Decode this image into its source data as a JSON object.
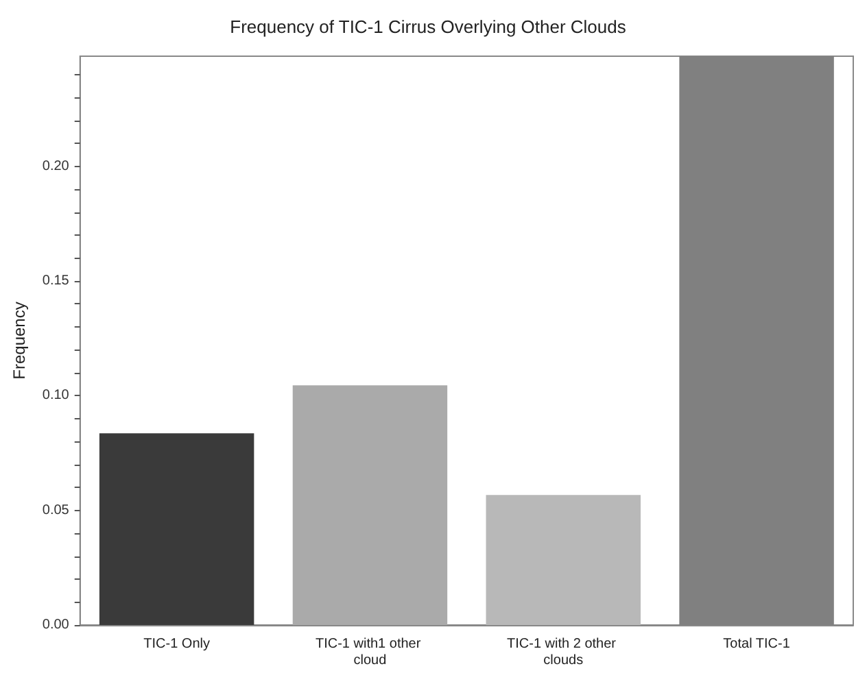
{
  "chart_data": {
    "type": "bar",
    "title": "Frequency of TIC-1 Cirrus Overlying Other Clouds",
    "ylabel": "Frequency",
    "categories": [
      "TIC-1 Only",
      "TIC-1 with1 other cloud",
      "TIC-1 with 2 other clouds",
      "Total TIC-1"
    ],
    "values": [
      0.0836,
      0.1045,
      0.0567,
      0.248
    ],
    "colors": [
      "#3a3a3a",
      "#aaaaaa",
      "#b8b8b8",
      "#808080"
    ],
    "ylim": [
      0,
      0.248
    ],
    "yticks": [
      "0.00",
      {
        "value": 0.01,
        "label": null
      },
      {
        "value": 0.02,
        "label": null
      },
      {
        "value": 0.03,
        "label": null
      },
      {
        "value": 0.04,
        "label": null
      },
      {
        "value": 0.05,
        "label": "0.05"
      },
      {
        "value": 0.06,
        "label": null
      },
      {
        "value": 0.07,
        "label": null
      },
      {
        "value": 0.08,
        "label": null
      },
      {
        "value": 0.09,
        "label": null
      },
      {
        "value": 0.1,
        "label": "0.10"
      },
      {
        "value": 0.11,
        "label": null
      },
      {
        "value": 0.12,
        "label": null
      },
      {
        "value": 0.13,
        "label": null
      },
      {
        "value": 0.14,
        "label": null
      },
      {
        "value": 0.15,
        "label": "0.15"
      },
      {
        "value": 0.16,
        "label": null
      },
      {
        "value": 0.17,
        "label": null
      },
      {
        "value": 0.18,
        "label": null
      },
      {
        "value": 0.19,
        "label": null
      },
      {
        "value": 0.2,
        "label": "0.20"
      },
      {
        "value": 0.21,
        "label": null
      },
      {
        "value": 0.22,
        "label": null
      },
      {
        "value": 0.23,
        "label": null
      },
      {
        "value": 0.24,
        "label": null
      }
    ],
    "grid": false
  }
}
